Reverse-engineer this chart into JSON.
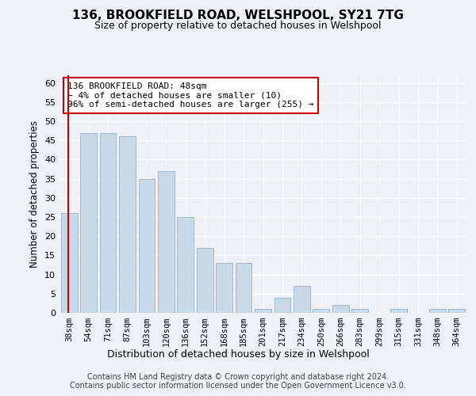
{
  "title1": "136, BROOKFIELD ROAD, WELSHPOOL, SY21 7TG",
  "title2": "Size of property relative to detached houses in Welshpool",
  "xlabel": "Distribution of detached houses by size in Welshpool",
  "ylabel": "Number of detached properties",
  "categories": [
    "38sqm",
    "54sqm",
    "71sqm",
    "87sqm",
    "103sqm",
    "120sqm",
    "136sqm",
    "152sqm",
    "168sqm",
    "185sqm",
    "201sqm",
    "217sqm",
    "234sqm",
    "250sqm",
    "266sqm",
    "283sqm",
    "299sqm",
    "315sqm",
    "331sqm",
    "348sqm",
    "364sqm"
  ],
  "values": [
    26,
    47,
    47,
    46,
    35,
    37,
    25,
    17,
    13,
    13,
    1,
    4,
    7,
    1,
    2,
    1,
    0,
    1,
    0,
    1,
    1
  ],
  "bar_color": "#c9d9e8",
  "bar_edge_color": "#a0b8d0",
  "marker_color": "#cc0000",
  "annotation_text": "136 BROOKFIELD ROAD: 48sqm\n← 4% of detached houses are smaller (10)\n96% of semi-detached houses are larger (255) →",
  "annotation_box_color": "#ffffff",
  "annotation_box_edge": "#cc0000",
  "ylim": [
    0,
    62
  ],
  "yticks": [
    0,
    5,
    10,
    15,
    20,
    25,
    30,
    35,
    40,
    45,
    50,
    55,
    60
  ],
  "footer1": "Contains HM Land Registry data © Crown copyright and database right 2024.",
  "footer2": "Contains public sector information licensed under the Open Government Licence v3.0.",
  "bg_color": "#eef2f7",
  "plot_bg_color": "#eef2f7"
}
